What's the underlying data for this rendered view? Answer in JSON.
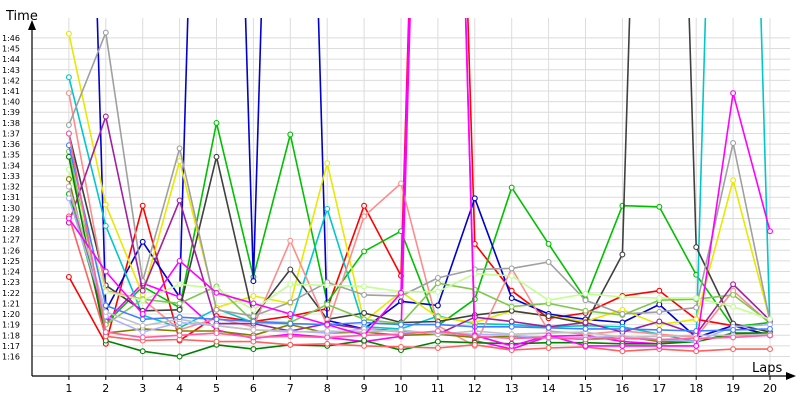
{
  "chart_data": {
    "type": "line",
    "xlabel": "Laps",
    "ylabel": "Time",
    "x": [
      1,
      2,
      3,
      4,
      5,
      6,
      7,
      8,
      9,
      10,
      11,
      12,
      13,
      14,
      15,
      16,
      17,
      18,
      19,
      20
    ],
    "xlim": [
      0,
      20
    ],
    "ylim_seconds": [
      75,
      108
    ],
    "y_tick_values": [
      76,
      77,
      78,
      79,
      80,
      81,
      82,
      83,
      84,
      85,
      86,
      87,
      88,
      89,
      90,
      91,
      92,
      93,
      94,
      95,
      96,
      97,
      98,
      99,
      100,
      101,
      102,
      103,
      104,
      105,
      106
    ],
    "y_tick_labels": [
      "1:16",
      "1:17",
      "1:18",
      "1:19",
      "1:20",
      "1:21",
      "1:22",
      "1:23",
      "1:24",
      "1:25",
      "1:26",
      "1:27",
      "1:28",
      "1:29",
      "1:30",
      "1:31",
      "1:32",
      "1:33",
      "1:34",
      "1:35",
      "1:36",
      "1:37",
      "1:38",
      "1:39",
      "1:40",
      "1:41",
      "1:42",
      "1:43",
      "1:44",
      "1:45",
      "1:46"
    ],
    "grid": true,
    "legend": false,
    "series": [
      {
        "color": "#ff0000",
        "values": [
          83.5,
          77.2,
          90.2,
          77.5,
          79.8,
          79.3,
          79.8,
          80.5,
          90.2,
          83.6,
          200,
          86.6,
          82.2,
          79.6,
          80.1,
          81.7,
          82.2,
          79.5,
          78.9,
          78.0
        ]
      },
      {
        "color": "#00c000",
        "values": [
          91.3,
          79.1,
          82.6,
          80.6,
          98.0,
          83.5,
          96.9,
          81.1,
          85.9,
          87.8,
          78.9,
          81.4,
          91.9,
          86.6,
          81.4,
          90.2,
          90.1,
          83.7,
          78.8,
          79.2
        ]
      },
      {
        "color": "#0000d0",
        "values": [
          200,
          80.3,
          86.8,
          81.6,
          200,
          83.1,
          200,
          79.4,
          78.6,
          81.2,
          80.8,
          90.9,
          81.5,
          80.0,
          79.5,
          79.2,
          80.9,
          77.8,
          78.9,
          78.0
        ]
      },
      {
        "color": "#ff00ff",
        "values": [
          92.0,
          79.3,
          82.9,
          81.6,
          78.5,
          77.7,
          78.1,
          77.8,
          77.4,
          77.9,
          200,
          77.5,
          76.7,
          77.9,
          78.0,
          77.4,
          77.2,
          77.5,
          78.0,
          78.0
        ]
      },
      {
        "color": "#00c8c8",
        "values": [
          102.3,
          88.3,
          79.9,
          78.7,
          80.5,
          79.2,
          79.1,
          89.9,
          78.8,
          78.6,
          79.8,
          79.1,
          79.0,
          78.8,
          78.9,
          78.8,
          78.1,
          77.4,
          200,
          78.2
        ]
      },
      {
        "color": "#e8e800",
        "values": [
          106.4,
          90.3,
          81.8,
          94.4,
          80.6,
          81.7,
          81.0,
          94.2,
          79.3,
          82.1,
          79.7,
          79.2,
          80.3,
          79.8,
          79.3,
          80.4,
          79.0,
          79.5,
          92.6,
          79.4
        ]
      },
      {
        "color": "#404040",
        "values": [
          97.0,
          82.7,
          80.3,
          80.4,
          94.8,
          79.7,
          84.2,
          79.5,
          80.1,
          79.2,
          79.3,
          79.9,
          80.3,
          79.8,
          79.1,
          85.6,
          200,
          86.3,
          79.1,
          78.3
        ]
      },
      {
        "color": "#ff8c8c",
        "values": [
          100.8,
          82.2,
          81.4,
          78.5,
          79.6,
          78.8,
          86.9,
          78.9,
          89.2,
          92.3,
          78.9,
          77.0,
          84.3,
          78.4,
          78.1,
          78.4,
          78.1,
          77.8,
          82.2,
          79.1
        ]
      },
      {
        "color": "#7ec850",
        "values": [
          95.3,
          79.0,
          81.4,
          81.0,
          82.6,
          79.3,
          79.2,
          80.9,
          79.5,
          79.1,
          82.9,
          82.3,
          80.7,
          81.0,
          80.3,
          79.9,
          81.3,
          81.4,
          81.8,
          79.2
        ]
      },
      {
        "color": "#a0a0a0",
        "values": [
          97.8,
          106.5,
          83.1,
          95.6,
          80.4,
          79.8,
          81.1,
          83.0,
          81.8,
          81.7,
          83.4,
          84.2,
          84.3,
          84.9,
          81.3,
          80.0,
          80.2,
          80.6,
          96.1,
          79.3
        ]
      },
      {
        "color": "#a020a0",
        "values": [
          88.6,
          98.6,
          82.2,
          90.7,
          79.1,
          79.1,
          78.4,
          79.1,
          78.6,
          78.4,
          78.1,
          79.7,
          79.3,
          78.8,
          79.2,
          78.3,
          79.3,
          78.1,
          82.8,
          79.4
        ]
      },
      {
        "color": "#c0ff90",
        "values": [
          93.6,
          82.1,
          81.3,
          82.8,
          82.4,
          80.4,
          82.8,
          82.7,
          82.6,
          82.1,
          82.1,
          83.8,
          83.6,
          81.3,
          81.9,
          81.6,
          81.5,
          81.5,
          80.7,
          79.5
        ]
      },
      {
        "color": "#808000",
        "values": [
          92.7,
          78.2,
          78.6,
          78.4,
          78.4,
          78.0,
          79.0,
          78.2,
          78.3,
          78.0,
          78.1,
          77.8,
          77.9,
          77.8,
          77.6,
          77.9,
          77.4,
          77.4,
          78.1,
          78.1
        ]
      },
      {
        "color": "#008000",
        "values": [
          94.8,
          77.5,
          76.5,
          76.0,
          77.1,
          76.7,
          77.1,
          77.0,
          77.5,
          76.6,
          77.4,
          77.3,
          77.2,
          77.3,
          77.3,
          77.2,
          77.2,
          77.4,
          78.2,
          78.2
        ]
      },
      {
        "color": "#b0b0ff",
        "values": [
          90.9,
          79.8,
          78.3,
          79.2,
          78.9,
          78.5,
          78.4,
          78.2,
          78.6,
          78.3,
          78.2,
          78.1,
          78.0,
          77.7,
          77.8,
          77.9,
          77.6,
          77.4,
          78.8,
          79.0
        ]
      },
      {
        "color": "#ff6060",
        "values": [
          89.2,
          77.9,
          77.5,
          77.6,
          77.4,
          77.4,
          77.1,
          77.2,
          77.0,
          76.9,
          76.8,
          77.1,
          76.6,
          76.8,
          76.9,
          76.5,
          76.7,
          76.5,
          76.7,
          76.7
        ]
      },
      {
        "color": "#c0c0c0",
        "values": [
          92.0,
          80.2,
          78.9,
          79.5,
          78.9,
          78.5,
          78.3,
          78.4,
          78.3,
          78.5,
          78.1,
          78.4,
          78.1,
          78.2,
          78.3,
          77.8,
          77.9,
          78.0,
          78.0,
          78.1
        ]
      },
      {
        "color": "#4080ff",
        "values": [
          95.9,
          80.8,
          79.5,
          79.7,
          79.5,
          79.3,
          79.1,
          79.0,
          79.2,
          79.0,
          79.0,
          78.8,
          78.8,
          78.7,
          78.6,
          78.6,
          78.5,
          78.4,
          78.5,
          78.6
        ]
      },
      {
        "color": "#ff00ff",
        "values": [
          89.0,
          84.0,
          80.0,
          85.0,
          82.0,
          81.0,
          80.0,
          79.0,
          78.0,
          82.0,
          200,
          78.0,
          77.0,
          78.0,
          77.0,
          77.0,
          77.0,
          77.0,
          100.8,
          87.8
        ]
      },
      {
        "color": "#ff60a0",
        "values": [
          97.0,
          78.3,
          77.8,
          78.0,
          78.2,
          77.8,
          77.9,
          77.8,
          78.0,
          78.1,
          78.4,
          77.9,
          77.7,
          77.8,
          77.6,
          77.7,
          77.6,
          77.7,
          77.8,
          78.0
        ]
      }
    ]
  }
}
